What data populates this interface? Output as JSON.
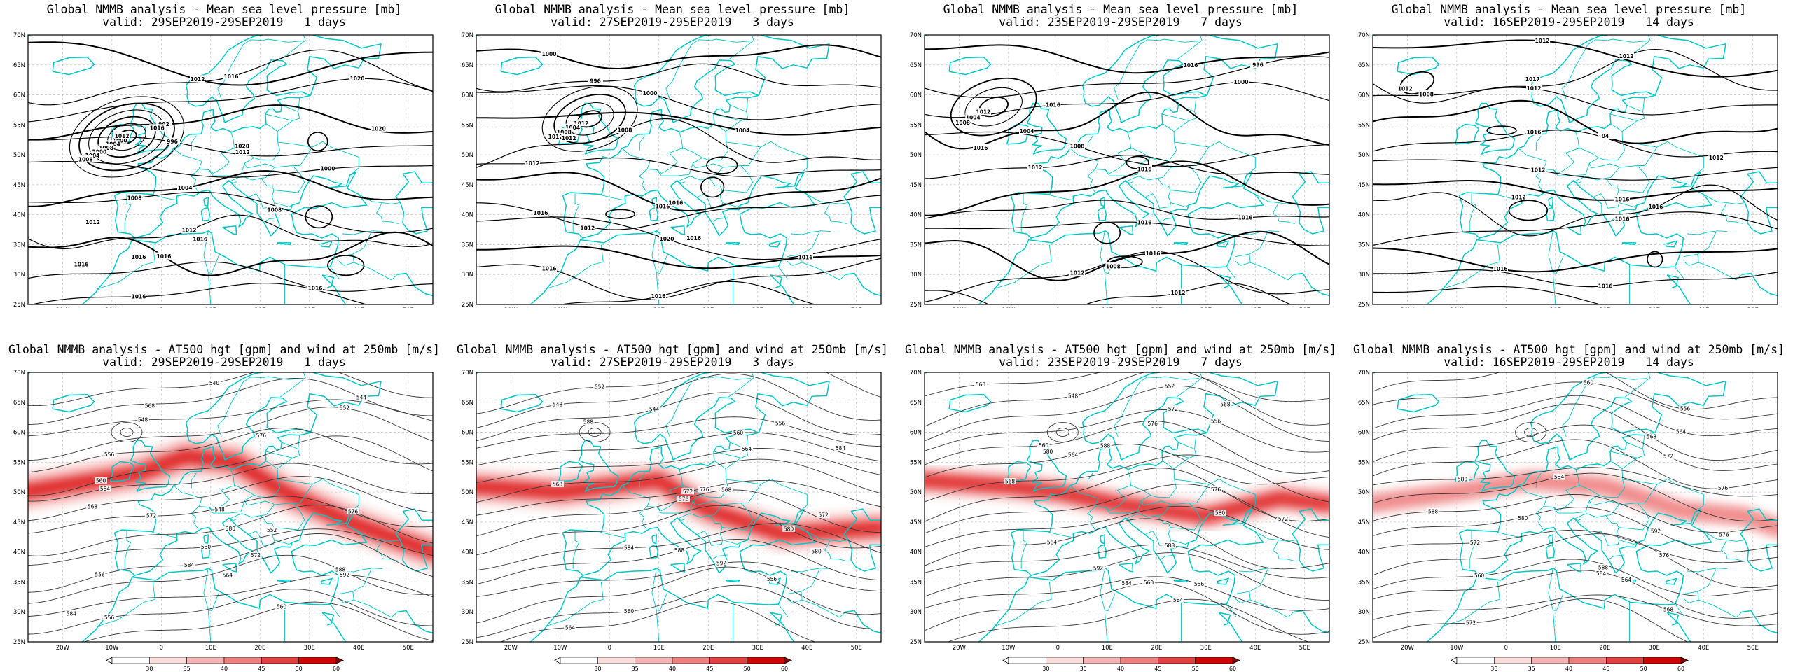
{
  "colors": {
    "coastline": "#00c8c8",
    "isobar": "#000000",
    "grid": "#c8c8c8",
    "wind_ramp": [
      "#ffffff",
      "#fadcdc",
      "#f5b4b4",
      "#ef8080",
      "#e34040",
      "#d40000",
      "#8a0000"
    ]
  },
  "axes": {
    "lon_ticks": [
      "20W",
      "10W",
      "0",
      "10E",
      "20E",
      "30E",
      "40E",
      "50E"
    ],
    "lat_ticks": [
      "25N",
      "30N",
      "35N",
      "40N",
      "45N",
      "50N",
      "55N",
      "60N",
      "65N",
      "70N"
    ]
  },
  "colorbar_ticks": [
    "30",
    "35",
    "40",
    "45",
    "50",
    "60"
  ],
  "panels": [
    {
      "id": "mslp-1d",
      "title_line1": "Global NMMB analysis - Mean sea level pressure [mb]",
      "title_line2": "valid: 29SEP2019-29SEP2019   1 days",
      "contour_labels": [
        "1000",
        "1004",
        "1008",
        "1000",
        "1004",
        "1008",
        "1012",
        "1016",
        "1020",
        "992",
        "996",
        "1000",
        "1004",
        "1008",
        "1012",
        "1016",
        "1016",
        "1016",
        "1016",
        "1012",
        "1008",
        "1016",
        "1020",
        "1020",
        "1016",
        "1016",
        "1012",
        "1012"
      ]
    },
    {
      "id": "mslp-3d",
      "title_line1": "Global NMMB analysis - Mean sea level pressure [mb]",
      "title_line2": "valid: 27SEP2019-29SEP2019   3 days",
      "contour_labels": [
        "1012",
        "1004",
        "1008",
        "1012",
        "1000",
        "996",
        "1000",
        "1004",
        "1008",
        "1012",
        "1016",
        "1016",
        "1020",
        "1016",
        "1016",
        "1016",
        "1012",
        "1012",
        "1016",
        "1016"
      ]
    },
    {
      "id": "mslp-7d",
      "title_line1": "Global NMMB analysis - Mean sea level pressure [mb]",
      "title_line2": "valid: 23SEP2019-29SEP2019   7 days",
      "contour_labels": [
        "1012",
        "1004",
        "1008",
        "1016",
        "996",
        "1000",
        "1004",
        "1008",
        "1012",
        "1016",
        "1016",
        "1016",
        "1016",
        "1012",
        "1012",
        "1016",
        "1016",
        "1008"
      ]
    },
    {
      "id": "mslp-14d",
      "title_line1": "Global NMMB analysis - Mean sea level pressure [mb]",
      "title_line2": "valid: 16SEP2019-29SEP2019   14 days",
      "contour_labels": [
        "1012",
        "1012",
        "1012",
        "1012",
        "04",
        "1016",
        "1012",
        "1016",
        "1016",
        "1016",
        "1016",
        "1016",
        "1016",
        "1012",
        "1012",
        "1017",
        "1008"
      ]
    },
    {
      "id": "z500-1d",
      "title_line1": "Global NMMB analysis - AT500 hgt [gpm] and wind at 250mb [m/s]",
      "title_line2": "valid: 29SEP2019-29SEP2019   1 days",
      "contour_labels": [
        "540",
        "544",
        "548",
        "552",
        "556",
        "560",
        "564",
        "568",
        "572",
        "576",
        "580",
        "584",
        "588",
        "592",
        "556",
        "560",
        "564",
        "568",
        "572",
        "576",
        "580",
        "584",
        "548",
        "552",
        "556"
      ]
    },
    {
      "id": "z500-3d",
      "title_line1": "Global NMMB analysis - AT500 hgt [gpm] and wind at 250mb [m/s]",
      "title_line2": "valid: 27SEP2019-29SEP2019   3 days",
      "contour_labels": [
        "552",
        "548",
        "544",
        "556",
        "560",
        "564",
        "568",
        "572",
        "576",
        "580",
        "584",
        "588",
        "592",
        "556",
        "560",
        "564",
        "568",
        "572",
        "576",
        "580",
        "584",
        "588"
      ]
    },
    {
      "id": "z500-7d",
      "title_line1": "Global NMMB analysis - AT500 hgt [gpm] and wind at 250mb [m/s]",
      "title_line2": "valid: 23SEP2019-29SEP2019   7 days",
      "contour_labels": [
        "560",
        "548",
        "552",
        "556",
        "560",
        "564",
        "568",
        "572",
        "576",
        "580",
        "584",
        "588",
        "592",
        "556",
        "560",
        "564",
        "568",
        "572",
        "576",
        "580",
        "584",
        "588"
      ]
    },
    {
      "id": "z500-14d",
      "title_line1": "Global NMMB analysis - AT500 hgt [gpm] and wind at 250mb [m/s]",
      "title_line2": "valid: 16SEP2019-29SEP2019   14 days",
      "contour_labels": [
        "556",
        "560",
        "564",
        "568",
        "572",
        "576",
        "580",
        "584",
        "588",
        "592",
        "572",
        "576",
        "560",
        "564",
        "568",
        "572",
        "576",
        "580",
        "584",
        "588"
      ]
    }
  ]
}
